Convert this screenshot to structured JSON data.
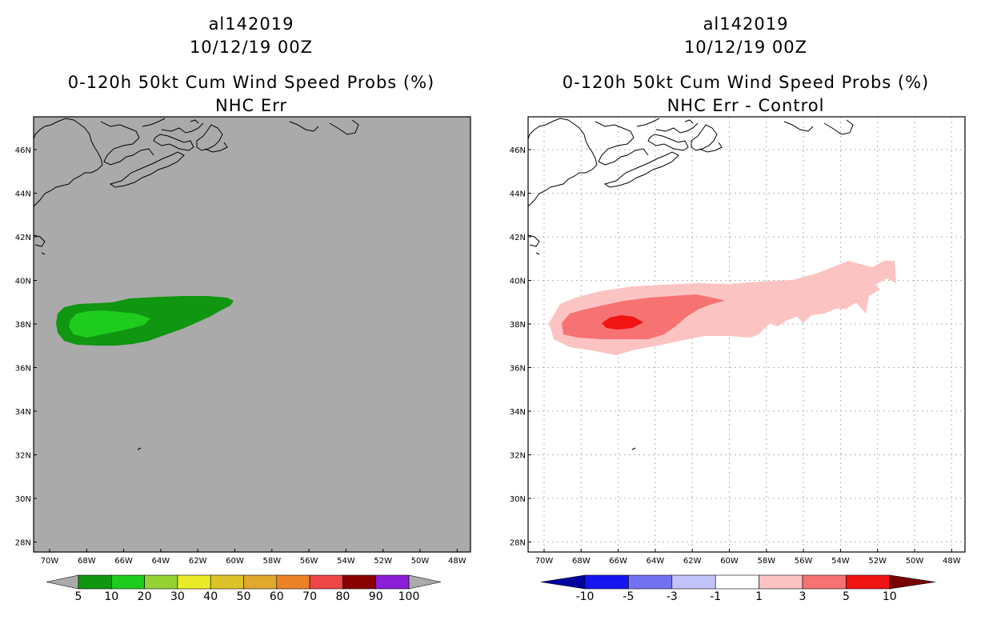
{
  "left_panel": {
    "storm_id": "al142019",
    "datetime": "10/12/19 00Z",
    "title": "0-120h 50kt Cum Wind Speed Probs (%)",
    "subtitle": "NHC Err",
    "colorbar": {
      "labels": [
        "5",
        "10",
        "20",
        "30",
        "40",
        "50",
        "60",
        "70",
        "80",
        "90",
        "100"
      ],
      "colors": [
        "#119611",
        "#1ecc1e",
        "#96d232",
        "#ebeb28",
        "#dcc328",
        "#e0a82c",
        "#ea8228",
        "#ee4646",
        "#8a0000",
        "#8c1ed7"
      ]
    },
    "colors": {
      "background": "#aaaaaa",
      "band_5_10": "#119611",
      "band_10_20": "#1ecc1e"
    }
  },
  "right_panel": {
    "storm_id": "al142019",
    "datetime": "10/12/19 00Z",
    "title": "0-120h 50kt Cum Wind Speed Probs (%)",
    "subtitle": "NHC Err - Control",
    "colorbar": {
      "labels": [
        "-10",
        "-5",
        "-3",
        "-1",
        "1",
        "3",
        "5",
        "10"
      ],
      "colors": [
        "#0000a0",
        "#1515f0",
        "#7373f2",
        "#c3c3fb",
        "#ffffff",
        "#fcc3c3",
        "#f77272",
        "#f01414",
        "#780000"
      ]
    },
    "colors": {
      "band_1_3": "#fcc3c3",
      "band_3_5": "#f77272",
      "band_5_10": "#f01414"
    }
  },
  "axes": {
    "lat_labels": [
      "46N",
      "44N",
      "42N",
      "40N",
      "38N",
      "36N",
      "34N",
      "32N",
      "30N",
      "28N"
    ],
    "lon_labels": [
      "70W",
      "68W",
      "66W",
      "64W",
      "62W",
      "60W",
      "58W",
      "56W",
      "54W",
      "52W",
      "50W",
      "48W"
    ]
  }
}
